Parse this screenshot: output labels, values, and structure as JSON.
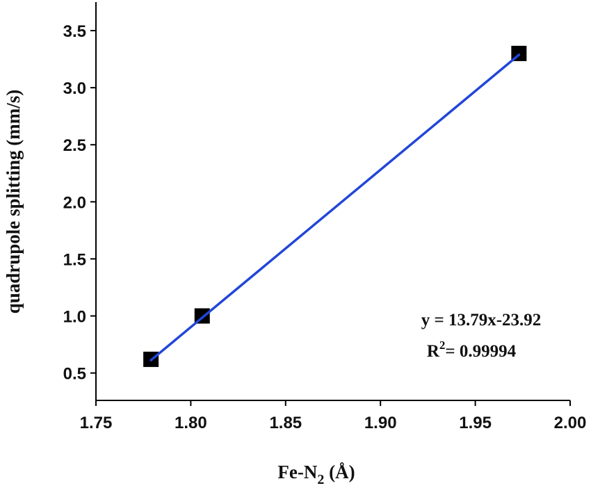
{
  "chart_data": {
    "type": "scatter",
    "xlabel_parts": [
      "Fe-N",
      "2",
      " (Å)"
    ],
    "ylabel": "quadrupole splitting (mm/s)",
    "xlim": [
      1.75,
      2.0
    ],
    "ylim": [
      0.26,
      3.75
    ],
    "x_ticks": [
      1.75,
      1.8,
      1.85,
      1.9,
      1.95,
      2.0
    ],
    "x_tick_labels": [
      "1.75",
      "1.80",
      "1.85",
      "1.90",
      "1.95",
      "2.00"
    ],
    "y_ticks": [
      0.5,
      1.0,
      1.5,
      2.0,
      2.5,
      3.0,
      3.5
    ],
    "y_tick_labels": [
      "0.5",
      "1.0",
      "1.5",
      "2.0",
      "2.5",
      "3.0",
      "3.5"
    ],
    "points": [
      {
        "x": 1.779,
        "y": 0.62
      },
      {
        "x": 1.806,
        "y": 1.0
      },
      {
        "x": 1.973,
        "y": 3.3
      }
    ],
    "fit_line": {
      "slope": 13.79,
      "intercept": -23.92,
      "x_range": [
        1.779,
        1.973
      ]
    },
    "equation_text": "y = 13.79x-23.92",
    "r2_parts": [
      "R",
      "2",
      "= 0.99994"
    ],
    "grid": false,
    "marker": "square",
    "colors": {
      "marker": "#000000",
      "fit_line": "#2146d8",
      "axis": "#000000"
    }
  }
}
